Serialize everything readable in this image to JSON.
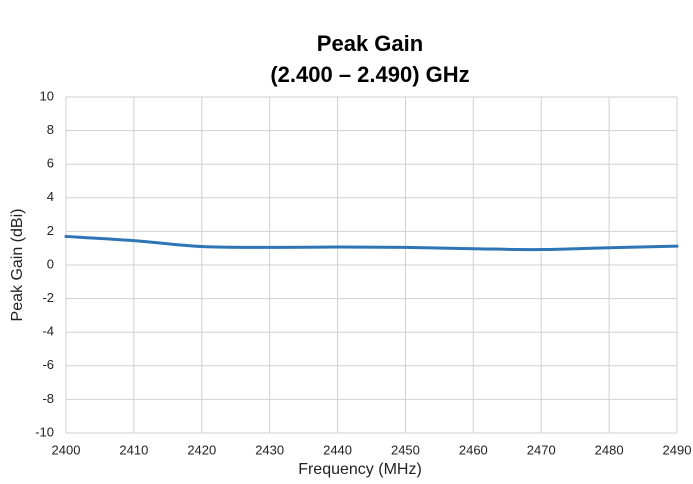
{
  "chart_data": {
    "type": "line",
    "title": "Peak Gain",
    "subtitle": "(2.400 – 2.490) GHz",
    "x_label": "Frequency (MHz)",
    "y_label": "Peak Gain (dBi)",
    "x": [
      2400,
      2410,
      2420,
      2430,
      2440,
      2450,
      2460,
      2470,
      2480,
      2490
    ],
    "series": [
      {
        "name": "Peak Gain",
        "color": "#2e75b6",
        "values": [
          1.7,
          1.45,
          1.1,
          1.05,
          1.07,
          1.05,
          0.97,
          0.92,
          1.03,
          1.12
        ]
      }
    ],
    "xlim": [
      2400,
      2490
    ],
    "xticks": [
      2400,
      2410,
      2420,
      2430,
      2440,
      2450,
      2460,
      2470,
      2480,
      2490
    ],
    "ylim": [
      -10,
      10
    ],
    "yticks": [
      -10,
      -8,
      -6,
      -4,
      -2,
      0,
      2,
      4,
      6,
      8,
      10
    ],
    "grid": true
  }
}
